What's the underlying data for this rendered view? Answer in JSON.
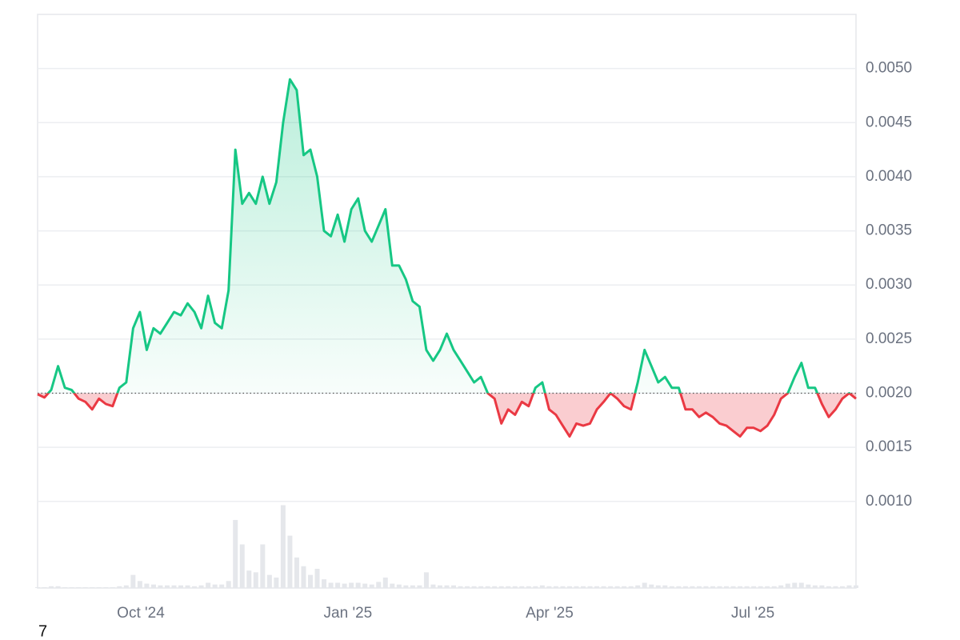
{
  "chart_data": {
    "type": "line",
    "baseline": 0.002,
    "up_color": "#16c784",
    "down_color": "#ea3943",
    "grid": true,
    "xlim": [
      0,
      120
    ],
    "xticks": [
      {
        "value": 15.13,
        "label": "Oct '24"
      },
      {
        "value": 45.5,
        "label": "Jan '25"
      },
      {
        "value": 75.07,
        "label": "Apr '25"
      },
      {
        "value": 104.87,
        "label": "Jul '25"
      }
    ],
    "ylim": [
      0.0002,
      0.0055
    ],
    "yticks": [
      {
        "value": 0.001,
        "label": "0.0010"
      },
      {
        "value": 0.0015,
        "label": "0.0015"
      },
      {
        "value": 0.002,
        "label": "0.0020"
      },
      {
        "value": 0.0025,
        "label": "0.0025"
      },
      {
        "value": 0.003,
        "label": "0.0030"
      },
      {
        "value": 0.0035,
        "label": "0.0035"
      },
      {
        "value": 0.004,
        "label": "0.0040"
      },
      {
        "value": 0.0045,
        "label": "0.0045"
      },
      {
        "value": 0.005,
        "label": "0.0050"
      }
    ],
    "y2lim": [
      0,
      100
    ],
    "series": [
      {
        "values": [
          0.00199,
          0.00196,
          0.00203,
          0.00225,
          0.00205,
          0.00203,
          0.00195,
          0.00192,
          0.00185,
          0.00195,
          0.0019,
          0.00188,
          0.00205,
          0.0021,
          0.0026,
          0.00275,
          0.0024,
          0.0026,
          0.00255,
          0.00265,
          0.00275,
          0.00272,
          0.00283,
          0.00275,
          0.0026,
          0.0029,
          0.00265,
          0.0026,
          0.00295,
          0.00425,
          0.00375,
          0.00385,
          0.00375,
          0.004,
          0.00375,
          0.00395,
          0.0045,
          0.0049,
          0.0048,
          0.0042,
          0.00425,
          0.004,
          0.0035,
          0.00345,
          0.00365,
          0.0034,
          0.0037,
          0.0038,
          0.0035,
          0.0034,
          0.00355,
          0.0037,
          0.00318,
          0.00318,
          0.00305,
          0.00285,
          0.0028,
          0.0024,
          0.0023,
          0.0024,
          0.00255,
          0.0024,
          0.0023,
          0.0022,
          0.0021,
          0.00215,
          0.002,
          0.00195,
          0.00172,
          0.00185,
          0.0018,
          0.00192,
          0.00188,
          0.00205,
          0.0021,
          0.00185,
          0.0018,
          0.0017,
          0.0016,
          0.00172,
          0.0017,
          0.00172,
          0.00185,
          0.00192,
          0.002,
          0.00195,
          0.00188,
          0.00185,
          0.0021,
          0.0024,
          0.00225,
          0.0021,
          0.00215,
          0.00205,
          0.00205,
          0.00185,
          0.00185,
          0.00178,
          0.00182,
          0.00178,
          0.00172,
          0.0017,
          0.00165,
          0.0016,
          0.00168,
          0.00168,
          0.00165,
          0.0017,
          0.0018,
          0.00195,
          0.002,
          0.00215,
          0.00228,
          0.00205,
          0.00205,
          0.0019,
          0.00178,
          0.00185,
          0.00195,
          0.002,
          0.00195
        ]
      },
      {
        "axis": "y2",
        "color": "#e5e7eb",
        "values": [
          1,
          1,
          2,
          2,
          1,
          1,
          1,
          1,
          1,
          1,
          1,
          1,
          2,
          3,
          15,
          8,
          5,
          4,
          3,
          3,
          3,
          3,
          3,
          2,
          3,
          6,
          4,
          4,
          8,
          78,
          50,
          20,
          18,
          50,
          15,
          12,
          95,
          60,
          35,
          25,
          15,
          22,
          10,
          6,
          6,
          5,
          6,
          6,
          5,
          4,
          7,
          12,
          5,
          4,
          3,
          3,
          3,
          18,
          4,
          3,
          3,
          3,
          2,
          2,
          2,
          2,
          2,
          2,
          2,
          2,
          2,
          2,
          2,
          2,
          3,
          2,
          2,
          2,
          2,
          2,
          2,
          2,
          2,
          2,
          2,
          2,
          2,
          2,
          3,
          6,
          4,
          3,
          3,
          2,
          2,
          2,
          2,
          2,
          2,
          2,
          2,
          2,
          2,
          2,
          2,
          2,
          2,
          2,
          2,
          3,
          5,
          6,
          6,
          4,
          3,
          3,
          2,
          2,
          2,
          3,
          3
        ]
      }
    ],
    "footer_text": "7"
  }
}
